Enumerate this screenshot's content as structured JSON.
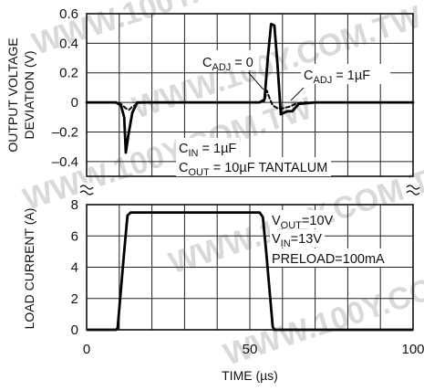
{
  "chart_data": [
    {
      "type": "line",
      "ylabel_lines": [
        "OUTPUT VOLTAGE",
        "DEVIATION (V)"
      ],
      "ylim": [
        -0.5,
        0.6
      ],
      "yticks": [
        "0.6",
        "0.4",
        "0.2",
        "0",
        "–0.2",
        "–0.4"
      ],
      "grid": true,
      "series": [
        {
          "style": "solid",
          "x": [
            0,
            9,
            10.5,
            11.5,
            12,
            12.8,
            14,
            15.5,
            17,
            53,
            54.5,
            55.5,
            56.5,
            57.5,
            58.5,
            59.5,
            60.5,
            61.5,
            63,
            65,
            70,
            100
          ],
          "y": [
            0,
            0,
            -0.02,
            -0.1,
            -0.34,
            -0.22,
            -0.07,
            0,
            0,
            0,
            0.02,
            0.3,
            0.53,
            0.52,
            0.25,
            -0.08,
            -0.07,
            -0.06,
            -0.06,
            -0.01,
            0,
            0
          ]
        },
        {
          "style": "dashed",
          "x": [
            0,
            9,
            10.5,
            12,
            13,
            14,
            15.5,
            17,
            53,
            54.5,
            55.2,
            56,
            57,
            58.5,
            60,
            62,
            64,
            66,
            100
          ],
          "y": [
            0,
            0,
            -0.01,
            -0.04,
            -0.05,
            -0.03,
            -0.01,
            0,
            0,
            0.01,
            0.08,
            0.03,
            -0.02,
            -0.04,
            -0.04,
            -0.03,
            -0.01,
            0,
            0
          ]
        }
      ],
      "annotations": {
        "c_adj_0": {
          "main": "C",
          "sub": "ADJ",
          "tail": " = 0"
        },
        "c_adj_1": {
          "main": "C",
          "sub": "ADJ",
          "tail": " = 1µF"
        },
        "c_in": {
          "main": "C",
          "sub": "IN",
          "tail": " = 1µF"
        },
        "c_out": {
          "main": "C",
          "sub": "OUT",
          "tail": " = 10µF TANTALUM"
        }
      }
    },
    {
      "type": "line",
      "ylabel": "LOAD CURRENT (A)",
      "xlabel": "TIME (µs)",
      "xlim": [
        0,
        100
      ],
      "ylim": [
        0,
        8
      ],
      "xticks": [
        "0",
        "50",
        "100"
      ],
      "yticks": [
        "8",
        "6",
        "4",
        "2",
        "0"
      ],
      "grid": true,
      "series": [
        {
          "x": [
            0,
            9,
            9.5,
            11.5,
            12.5,
            13.5,
            53,
            54,
            55,
            57,
            57.5,
            100
          ],
          "y": [
            0,
            0,
            0.1,
            5,
            7.3,
            7.5,
            7.5,
            7.2,
            5,
            0.2,
            0,
            0
          ]
        }
      ],
      "annotations": {
        "v_out": {
          "main": "V",
          "sub": "OUT",
          "tail": "=10V"
        },
        "v_in": {
          "main": "V",
          "sub": "IN",
          "tail": "=13V"
        },
        "preload": "PRELOAD=100mA"
      }
    }
  ],
  "watermark": "WWW.100Y.COM.TW"
}
